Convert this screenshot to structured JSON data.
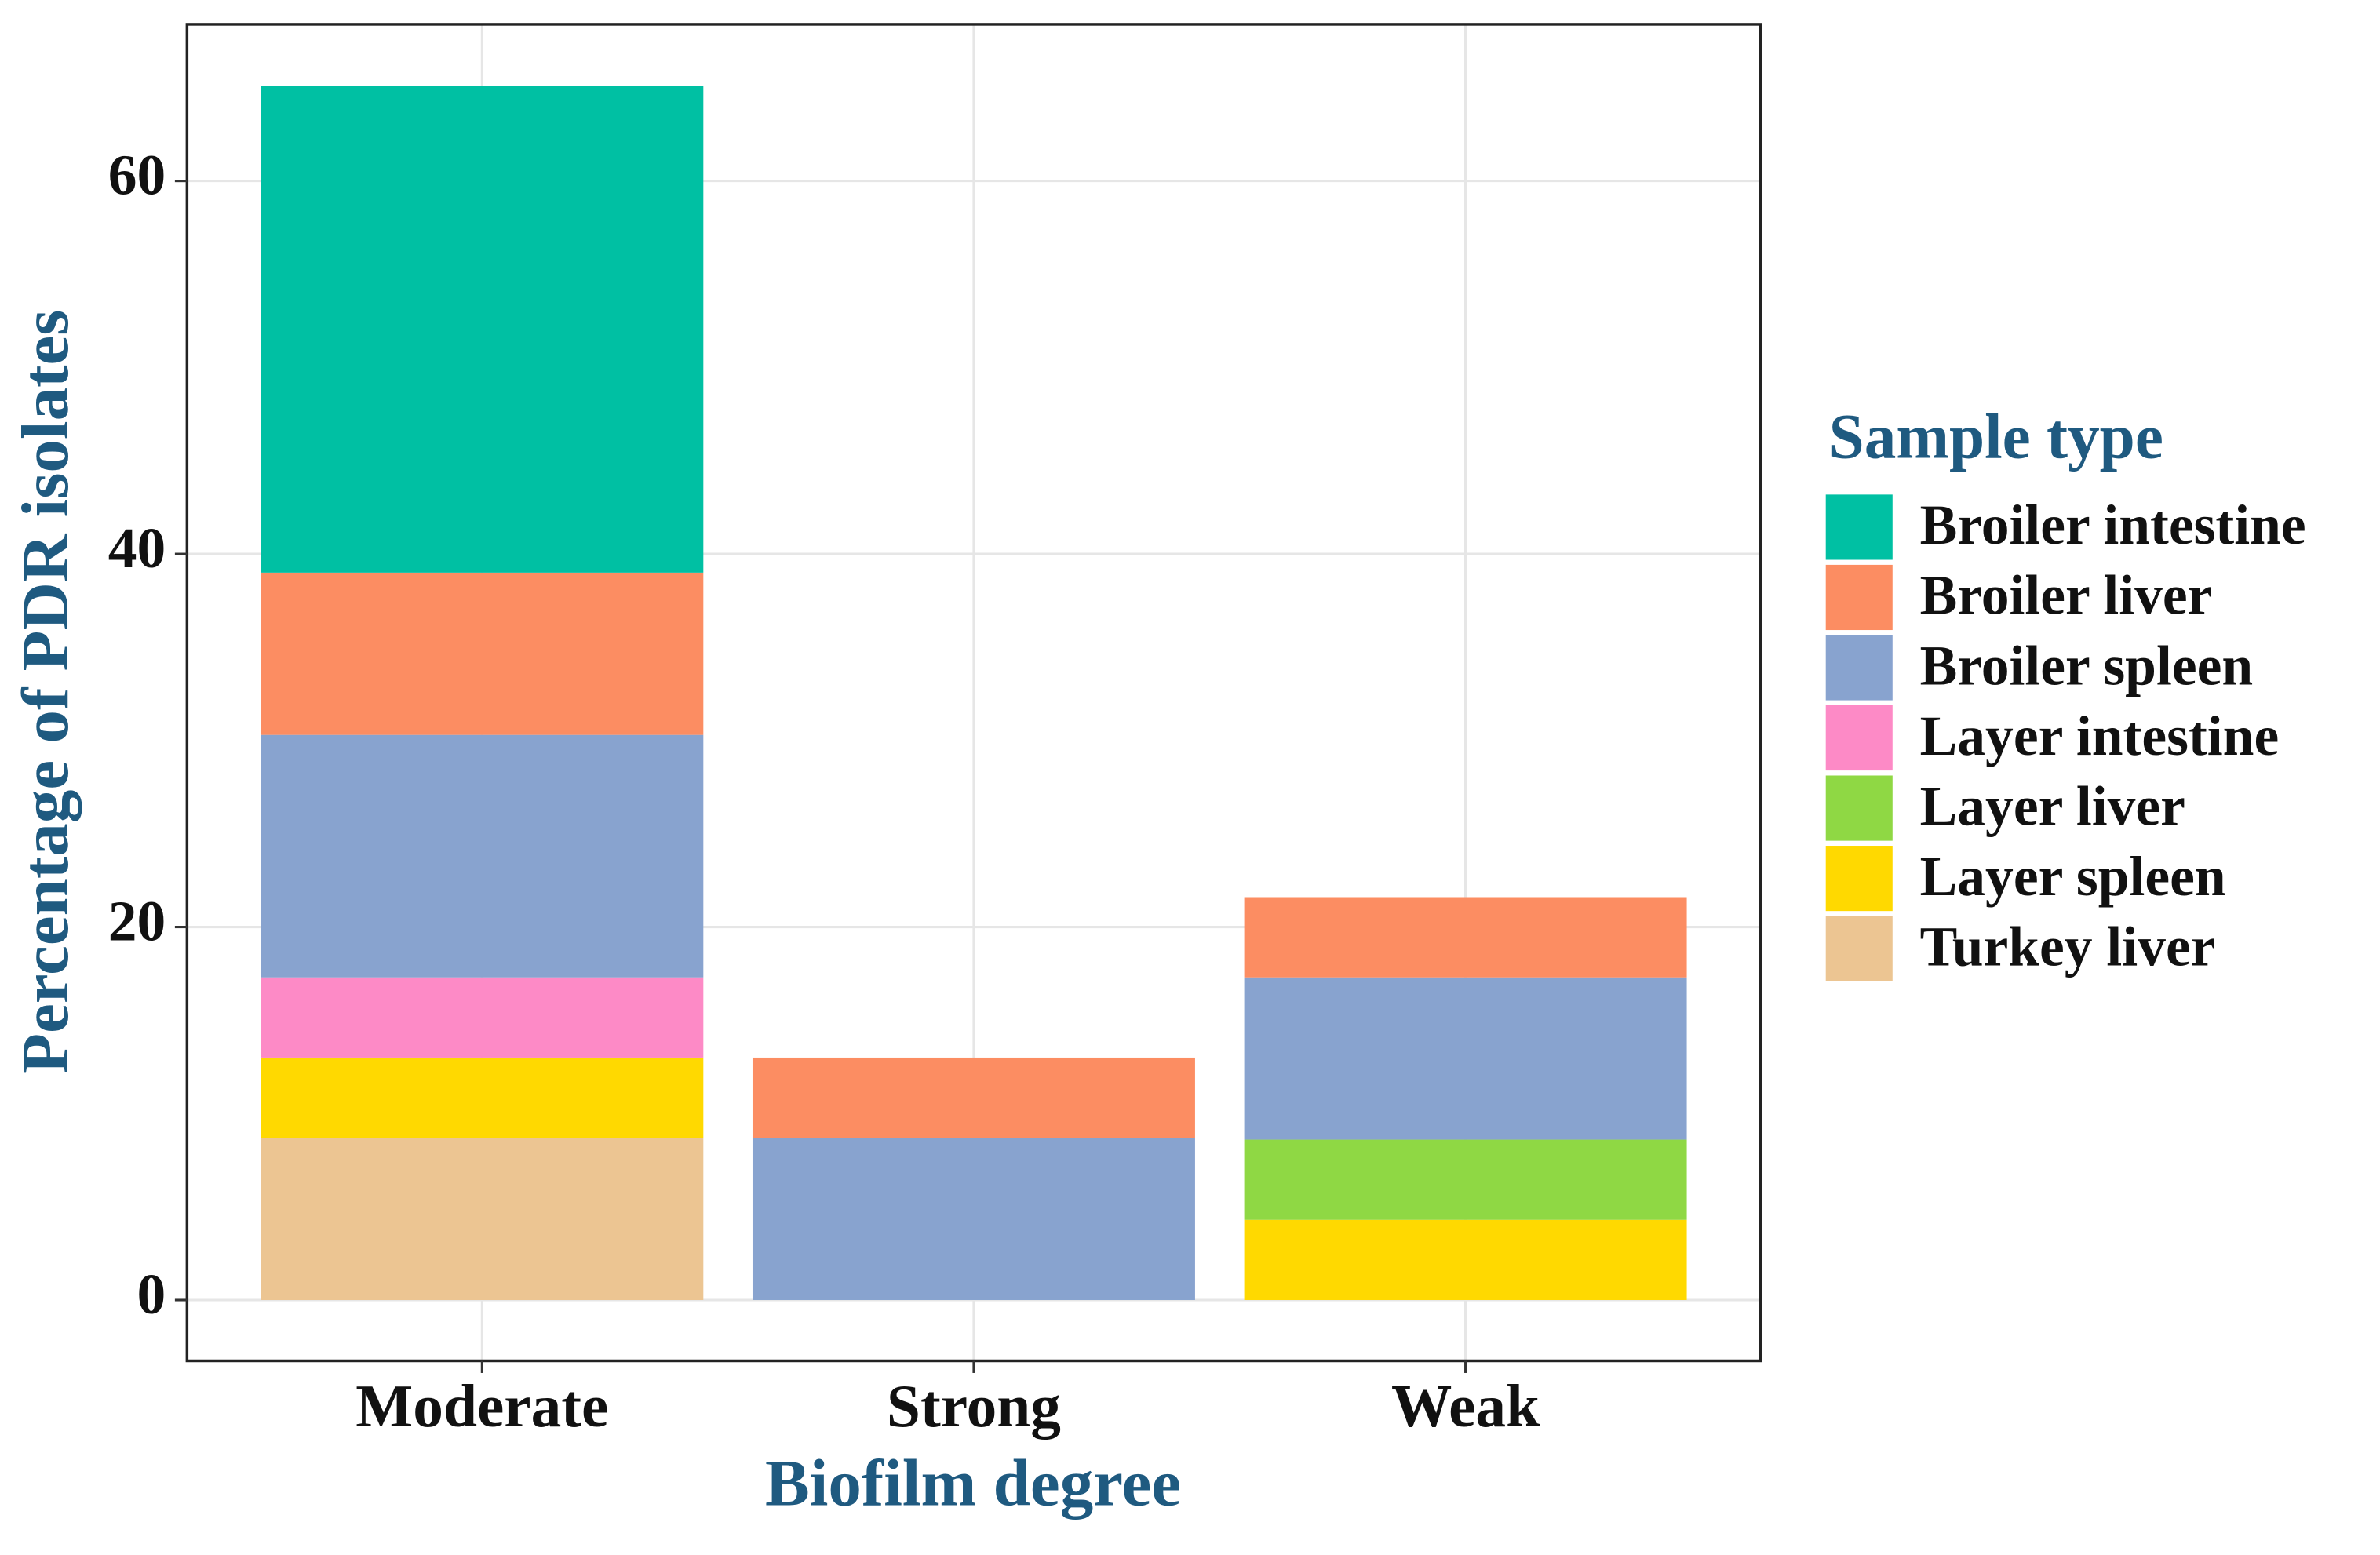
{
  "chart_data": {
    "type": "stacked_bar",
    "x_label": "Biofilm degree",
    "y_label": "Percentage of PDR isolates",
    "legend_title": "Sample type",
    "categories": [
      "Moderate",
      "Strong",
      "Weak"
    ],
    "series": [
      {
        "name": "Broiler intestine",
        "color": "#00c0a3",
        "values": [
          26.1,
          null,
          null
        ]
      },
      {
        "name": "Broiler liver",
        "color": "#fc8d62",
        "values": [
          8.7,
          4.3,
          4.3
        ]
      },
      {
        "name": "Broiler spleen",
        "color": "#88a3cf",
        "values": [
          13.0,
          8.7,
          8.7
        ]
      },
      {
        "name": "Layer intestine",
        "color": "#fd8ac6",
        "values": [
          4.3,
          null,
          null
        ]
      },
      {
        "name": "Layer liver",
        "color": "#8fd844",
        "values": [
          null,
          null,
          4.3
        ]
      },
      {
        "name": "Layer spleen",
        "color": "#ffd900",
        "values": [
          4.3,
          null,
          4.3
        ]
      },
      {
        "name": "Turkey liver",
        "color": "#ecc592",
        "values": [
          8.7,
          null,
          null
        ]
      }
    ],
    "ylim": [
      -3.26,
      68.4
    ],
    "yticks": [
      0,
      20,
      40,
      60
    ],
    "grid": true,
    "legend": "right"
  }
}
